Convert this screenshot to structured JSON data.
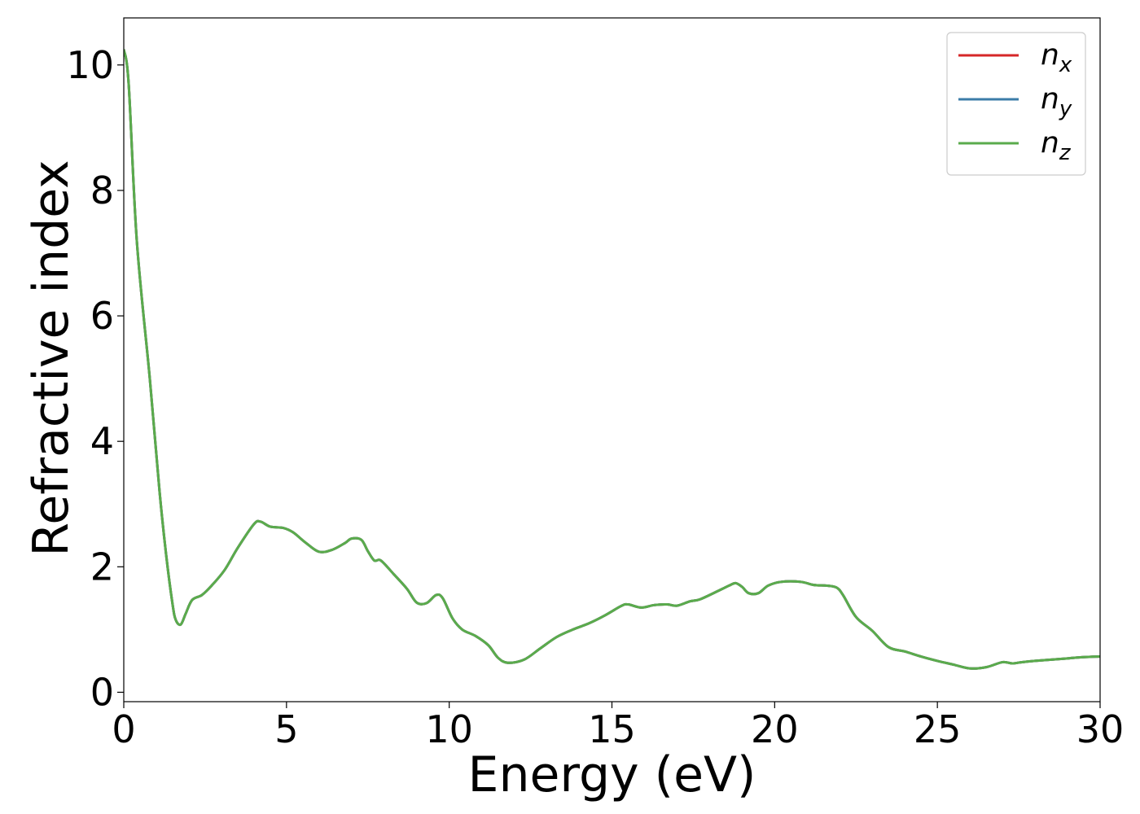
{
  "chart_data": {
    "type": "line",
    "title": "",
    "xlabel": "Energy (eV)",
    "ylabel": "Refractive index",
    "xlim": [
      0,
      30
    ],
    "ylim": [
      -0.15,
      10.75
    ],
    "xticks": [
      0,
      5,
      10,
      15,
      20,
      25,
      30
    ],
    "yticks": [
      0,
      2,
      4,
      6,
      8,
      10
    ],
    "grid": false,
    "legend_position": "top-right",
    "series": [
      {
        "name": "n",
        "subscript": "x",
        "color": "#d62728",
        "x": [
          0.0,
          0.15,
          0.4,
          0.8,
          1.1,
          1.3,
          1.5,
          1.6,
          1.75,
          1.9,
          2.1,
          2.4,
          2.7,
          3.1,
          3.5,
          4.0,
          4.2,
          4.5,
          4.9,
          5.2,
          5.6,
          6.0,
          6.4,
          6.8,
          7.0,
          7.3,
          7.5,
          7.7,
          7.9,
          8.3,
          8.7,
          9.0,
          9.3,
          9.6,
          9.8,
          10.1,
          10.4,
          10.8,
          11.2,
          11.5,
          11.8,
          12.3,
          12.8,
          13.3,
          13.8,
          14.3,
          14.8,
          15.3,
          15.5,
          15.9,
          16.3,
          16.7,
          17.0,
          17.4,
          17.7,
          18.2,
          18.6,
          18.8,
          19.0,
          19.2,
          19.5,
          19.8,
          20.2,
          20.8,
          21.2,
          21.6,
          21.9,
          22.1,
          22.5,
          23.0,
          23.5,
          24.0,
          24.5,
          25.0,
          25.5,
          26.0,
          26.5,
          27.0,
          27.3,
          27.6,
          28.0,
          28.5,
          29.0,
          29.5,
          30.0
        ],
        "y": [
          10.25,
          9.7,
          7.2,
          5.0,
          3.2,
          2.2,
          1.4,
          1.15,
          1.08,
          1.25,
          1.47,
          1.55,
          1.7,
          1.95,
          2.3,
          2.68,
          2.72,
          2.64,
          2.62,
          2.55,
          2.38,
          2.24,
          2.27,
          2.38,
          2.45,
          2.43,
          2.25,
          2.1,
          2.1,
          1.88,
          1.65,
          1.43,
          1.42,
          1.55,
          1.5,
          1.18,
          1.0,
          0.9,
          0.75,
          0.55,
          0.47,
          0.52,
          0.7,
          0.88,
          1.0,
          1.1,
          1.23,
          1.38,
          1.4,
          1.35,
          1.39,
          1.4,
          1.38,
          1.45,
          1.48,
          1.6,
          1.7,
          1.74,
          1.68,
          1.58,
          1.58,
          1.7,
          1.76,
          1.76,
          1.71,
          1.7,
          1.67,
          1.55,
          1.2,
          0.98,
          0.72,
          0.65,
          0.57,
          0.5,
          0.44,
          0.38,
          0.4,
          0.48,
          0.46,
          0.48,
          0.5,
          0.52,
          0.54,
          0.56,
          0.57
        ]
      },
      {
        "name": "n",
        "subscript": "y",
        "color": "#3b7ca8",
        "x": [
          0.0,
          0.15,
          0.4,
          0.8,
          1.1,
          1.3,
          1.5,
          1.6,
          1.75,
          1.9,
          2.1,
          2.4,
          2.7,
          3.1,
          3.5,
          4.0,
          4.2,
          4.5,
          4.9,
          5.2,
          5.6,
          6.0,
          6.4,
          6.8,
          7.0,
          7.3,
          7.5,
          7.7,
          7.9,
          8.3,
          8.7,
          9.0,
          9.3,
          9.6,
          9.8,
          10.1,
          10.4,
          10.8,
          11.2,
          11.5,
          11.8,
          12.3,
          12.8,
          13.3,
          13.8,
          14.3,
          14.8,
          15.3,
          15.5,
          15.9,
          16.3,
          16.7,
          17.0,
          17.4,
          17.7,
          18.2,
          18.6,
          18.8,
          19.0,
          19.2,
          19.5,
          19.8,
          20.2,
          20.8,
          21.2,
          21.6,
          21.9,
          22.1,
          22.5,
          23.0,
          23.5,
          24.0,
          24.5,
          25.0,
          25.5,
          26.0,
          26.5,
          27.0,
          27.3,
          27.6,
          28.0,
          28.5,
          29.0,
          29.5,
          30.0
        ],
        "y": [
          10.25,
          9.7,
          7.2,
          5.0,
          3.2,
          2.2,
          1.4,
          1.15,
          1.08,
          1.25,
          1.47,
          1.55,
          1.7,
          1.95,
          2.3,
          2.68,
          2.72,
          2.64,
          2.62,
          2.55,
          2.38,
          2.24,
          2.27,
          2.38,
          2.45,
          2.43,
          2.25,
          2.1,
          2.1,
          1.88,
          1.65,
          1.43,
          1.42,
          1.55,
          1.5,
          1.18,
          1.0,
          0.9,
          0.75,
          0.55,
          0.47,
          0.52,
          0.7,
          0.88,
          1.0,
          1.1,
          1.23,
          1.38,
          1.4,
          1.35,
          1.39,
          1.4,
          1.38,
          1.45,
          1.48,
          1.6,
          1.7,
          1.74,
          1.68,
          1.58,
          1.58,
          1.7,
          1.76,
          1.76,
          1.71,
          1.7,
          1.67,
          1.55,
          1.2,
          0.98,
          0.72,
          0.65,
          0.57,
          0.5,
          0.44,
          0.38,
          0.4,
          0.48,
          0.46,
          0.48,
          0.5,
          0.52,
          0.54,
          0.56,
          0.57
        ]
      },
      {
        "name": "n",
        "subscript": "z",
        "color": "#5aab4c",
        "x": [
          0.0,
          0.15,
          0.4,
          0.8,
          1.1,
          1.3,
          1.5,
          1.6,
          1.75,
          1.9,
          2.1,
          2.4,
          2.7,
          3.1,
          3.5,
          4.0,
          4.2,
          4.5,
          4.9,
          5.2,
          5.6,
          6.0,
          6.4,
          6.8,
          7.0,
          7.3,
          7.5,
          7.7,
          7.9,
          8.3,
          8.7,
          9.0,
          9.3,
          9.6,
          9.8,
          10.1,
          10.4,
          10.8,
          11.2,
          11.5,
          11.8,
          12.3,
          12.8,
          13.3,
          13.8,
          14.3,
          14.8,
          15.3,
          15.5,
          15.9,
          16.3,
          16.7,
          17.0,
          17.4,
          17.7,
          18.2,
          18.6,
          18.8,
          19.0,
          19.2,
          19.5,
          19.8,
          20.2,
          20.8,
          21.2,
          21.6,
          21.9,
          22.1,
          22.5,
          23.0,
          23.5,
          24.0,
          24.5,
          25.0,
          25.5,
          26.0,
          26.5,
          27.0,
          27.3,
          27.6,
          28.0,
          28.5,
          29.0,
          29.5,
          30.0
        ],
        "y": [
          10.25,
          9.7,
          7.2,
          5.0,
          3.2,
          2.2,
          1.4,
          1.15,
          1.08,
          1.25,
          1.47,
          1.55,
          1.7,
          1.95,
          2.3,
          2.68,
          2.72,
          2.64,
          2.62,
          2.55,
          2.38,
          2.24,
          2.27,
          2.38,
          2.45,
          2.43,
          2.25,
          2.1,
          2.1,
          1.88,
          1.65,
          1.43,
          1.42,
          1.55,
          1.5,
          1.18,
          1.0,
          0.9,
          0.75,
          0.55,
          0.47,
          0.52,
          0.7,
          0.88,
          1.0,
          1.1,
          1.23,
          1.38,
          1.4,
          1.35,
          1.39,
          1.4,
          1.38,
          1.45,
          1.48,
          1.6,
          1.7,
          1.74,
          1.68,
          1.58,
          1.58,
          1.7,
          1.76,
          1.76,
          1.71,
          1.7,
          1.67,
          1.55,
          1.2,
          0.98,
          0.72,
          0.65,
          0.57,
          0.5,
          0.44,
          0.38,
          0.4,
          0.48,
          0.46,
          0.48,
          0.5,
          0.52,
          0.54,
          0.56,
          0.57
        ]
      }
    ]
  }
}
